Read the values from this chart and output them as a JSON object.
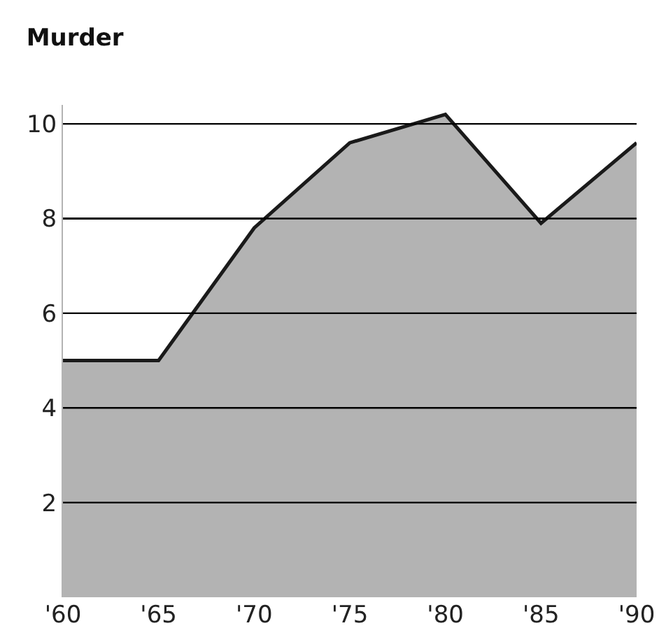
{
  "chart_data": {
    "type": "area",
    "title": "Murder",
    "x": [
      1960,
      1965,
      1970,
      1975,
      1980,
      1985,
      1990
    ],
    "series": [
      {
        "color": "#b3b3b3",
        "values": [
          5.0,
          5.0,
          7.8,
          9.6,
          10.2,
          7.9,
          9.6
        ]
      }
    ],
    "xlim": [
      1960,
      1990
    ],
    "xticks": [
      {
        "value": 1960,
        "label": "'60"
      },
      {
        "value": 1965,
        "label": "'65"
      },
      {
        "value": 1970,
        "label": "'70"
      },
      {
        "value": 1975,
        "label": "'75"
      },
      {
        "value": 1980,
        "label": "'80"
      },
      {
        "value": 1985,
        "label": "'85"
      },
      {
        "value": 1990,
        "label": "'90"
      }
    ],
    "ylim": [
      0,
      10.4
    ],
    "yticks": [
      2,
      4,
      6,
      8,
      10
    ],
    "grid": "y"
  }
}
